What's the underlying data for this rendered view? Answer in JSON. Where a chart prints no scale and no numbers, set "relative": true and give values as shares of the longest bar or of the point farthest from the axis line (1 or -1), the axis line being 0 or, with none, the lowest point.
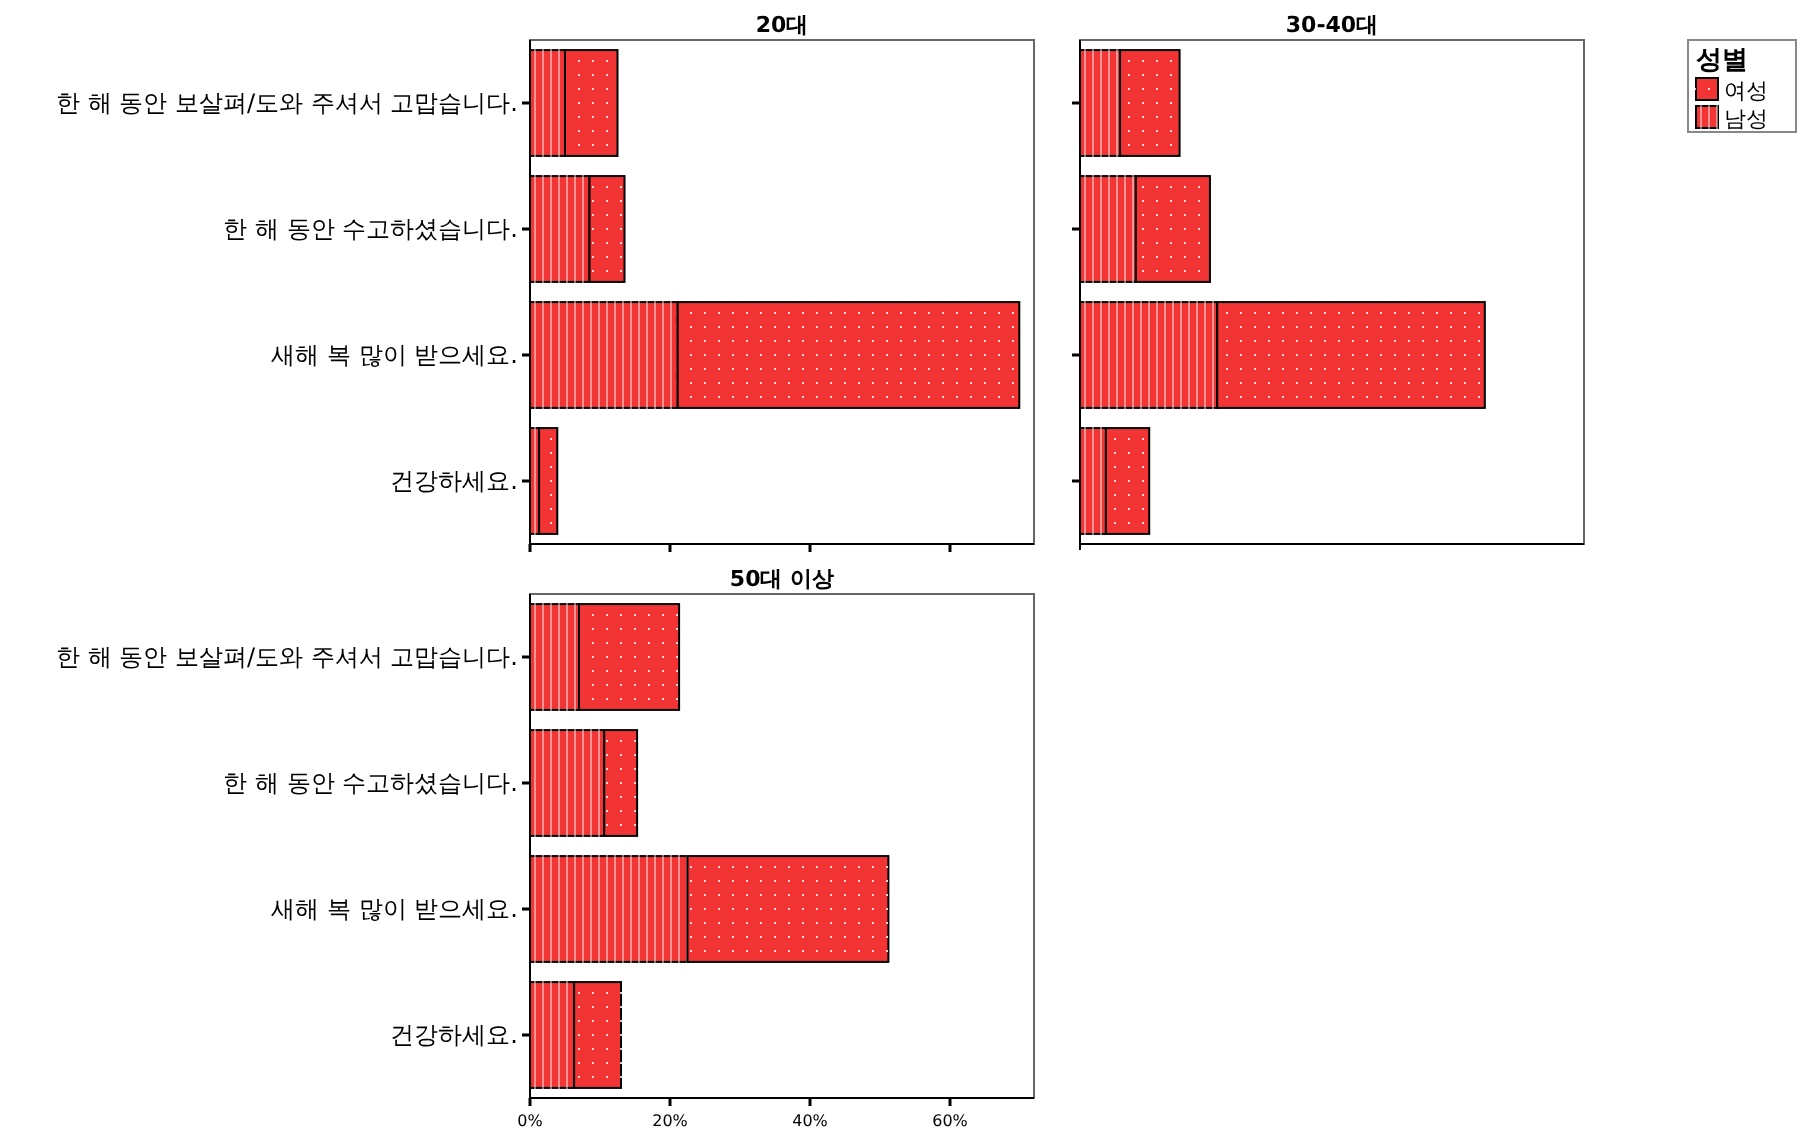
{
  "chart_data": [
    {
      "type": "bar",
      "title": "20대",
      "orientation": "horizontal",
      "stacked": true,
      "categories": [
        "한 해 동안 보살펴/도와 주셔서 고맙습니다.",
        "한 해 동안 수고하셨습니다.",
        "새해 복 많이 받으세요.",
        "건강하세요."
      ],
      "xlim": [
        0,
        72
      ],
      "xticks": [
        {
          "value": 0,
          "label": null
        },
        {
          "value": 20,
          "label": null
        },
        {
          "value": 40,
          "label": null
        },
        {
          "value": 60,
          "label": null
        }
      ],
      "tick_labels": "y",
      "series": [
        {
          "color": "#f23434",
          "values": [
            5.0,
            8.5,
            21.1,
            1.3
          ]
        },
        {
          "color": "#f23434",
          "values": [
            7.5,
            5.0,
            48.8,
            2.6
          ]
        }
      ]
    },
    {
      "type": "bar",
      "title": "30-40대",
      "orientation": "horizontal",
      "stacked": true,
      "categories": [
        null,
        null,
        null,
        null
      ],
      "relative": true,
      "legend": "right",
      "legend_title": "성별",
      "series": [
        {
          "name": "남성",
          "color": "#f23434",
          "values": [
            0.099,
            0.138,
            0.339,
            0.064
          ]
        },
        {
          "name": "여성",
          "color": "#f23434",
          "values": [
            0.147,
            0.183,
            0.661,
            0.107
          ]
        }
      ]
    },
    {
      "type": "bar",
      "title": "50대 이상",
      "orientation": "horizontal",
      "stacked": true,
      "categories": [
        "한 해 동안 보살펴/도와 주셔서 고맙습니다.",
        "한 해 동안 수고하셨습니다.",
        "새해 복 많이 받으세요.",
        "건강하세요."
      ],
      "xlim": [
        0,
        72
      ],
      "xticks": [
        {
          "value": 0,
          "label": "0%"
        },
        {
          "value": 20,
          "label": "20%"
        },
        {
          "value": 40,
          "label": "40%"
        },
        {
          "value": 60,
          "label": "60%"
        }
      ],
      "series": [
        {
          "color": "#f23434",
          "values": [
            7.0,
            10.6,
            22.5,
            6.3
          ]
        },
        {
          "color": "#f23434",
          "values": [
            14.3,
            4.7,
            28.7,
            6.7
          ]
        }
      ]
    }
  ]
}
